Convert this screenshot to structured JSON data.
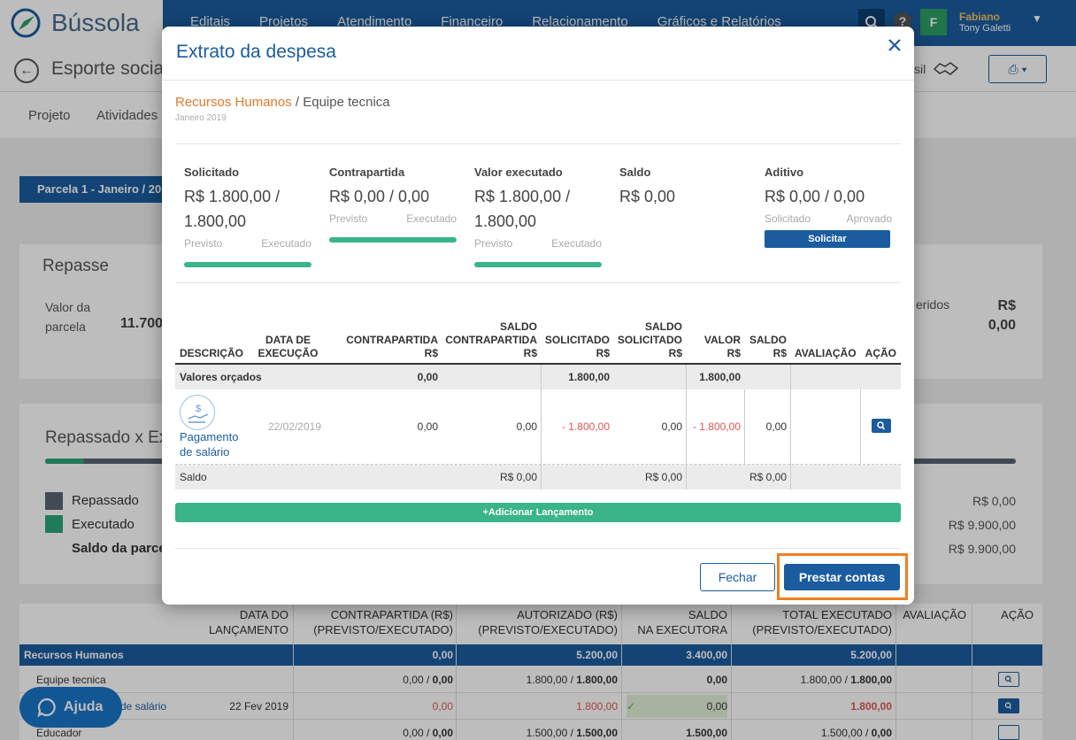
{
  "app": {
    "logo_text": "Bússola"
  },
  "nav": [
    "Editais",
    "Projetos",
    "Atendimento",
    "Financeiro",
    "Relacionamento",
    "Gráficos e Relatórios"
  ],
  "user": {
    "initial": "F",
    "name": "Fabiano",
    "subtitle": "Tony Galetti"
  },
  "subbar": {
    "title": "Esporte social",
    "right_text": "sil"
  },
  "tabs": [
    "Projeto",
    "Atividades"
  ],
  "parcela_label": "Parcela 1 - Janeiro / 20",
  "repasse": {
    "title": "Repasse",
    "valor_label_1": "Valor da",
    "valor_label_2": "parcela",
    "valor_value": "11.700",
    "right_label": "eridos",
    "right_value_1": "R$",
    "right_value_2": "0,00"
  },
  "rxe": {
    "title": "Repassado x Ex",
    "progress": 0.04,
    "legend": [
      {
        "label": "Repassado",
        "color": "#5a6475",
        "value": "R$ 0,00"
      },
      {
        "label": "Executado",
        "color": "#2aa679",
        "value": "R$ 9.900,00"
      }
    ],
    "saldo_label": "Saldo da parcel",
    "saldo_value": "R$ 9.900,00"
  },
  "bg_table": {
    "headers": [
      {
        "line1": "DATA DO",
        "line2": "LANÇAMENTO"
      },
      {
        "line1": "CONTRAPARTIDA (R$)",
        "line2": "(PREVISTO/EXECUTADO)"
      },
      {
        "line1": "AUTORIZADO (R$)",
        "line2": "(PREVISTO/EXECUTADO)"
      },
      {
        "line1": "SALDO",
        "line2": "NA EXECUTORA"
      },
      {
        "line1": "TOTAL EXECUTADO",
        "line2": "(PREVISTO/EXECUTADO)"
      },
      {
        "line1": "",
        "line2": "AVALIAÇÃO"
      },
      {
        "line1": "",
        "line2": "AÇÃO"
      }
    ],
    "group": {
      "name": "Recursos Humanos",
      "contrapartida": "0,00",
      "autorizado": "5.200,00",
      "saldo": "3.400,00",
      "total": "5.200,00"
    },
    "rows": [
      {
        "name": "Equipe tecnica",
        "date": "",
        "c1": "0,00 / ",
        "c2": "0,00",
        "a1": "1.800,00 / ",
        "a2": "1.800,00",
        "saldo": "0,00",
        "t1": "1.800,00 / ",
        "t2": "1.800,00"
      },
      {
        "name": "de salário",
        "date": "22 Fev 2019",
        "c": "0,00",
        "a": "1.800,00",
        "saldo": "0,00",
        "t": "1.800,00"
      },
      {
        "name": "Educador",
        "date": "",
        "c1": "0,00 / ",
        "c2": "0,00",
        "a1": "1.500,00 / ",
        "a2": "1.500,00",
        "saldo": "1.500,00",
        "t1": "1.500,00 / ",
        "t2": "0,00"
      }
    ]
  },
  "ajuda_label": "Ajuda",
  "modal": {
    "title": "Extrato da despesa",
    "breadcrumb_parent": "Recursos Humanos",
    "breadcrumb_sep": " / ",
    "breadcrumb_child": "Equipe tecnica",
    "period": "Janeiro 2019",
    "summary": [
      {
        "label": "Solicitado",
        "value_1": "R$ 1.800,00 /",
        "value_2": "1.800,00",
        "sub_left": "Previsto",
        "sub_right": "Executado"
      },
      {
        "label": "Contrapartida",
        "value_1": "R$ 0,00 / 0,00",
        "value_2": "",
        "sub_left": "Previsto",
        "sub_right": "Executado"
      },
      {
        "label": "Valor executado",
        "value_1": "R$ 1.800,00 /",
        "value_2": "1.800,00",
        "sub_left": "Previsto",
        "sub_right": "Executado"
      },
      {
        "label": "Saldo",
        "value_1": "R$ 0,00",
        "value_2": ""
      },
      {
        "label": "Aditivo",
        "value_1": "R$ 0,00 / 0,00",
        "value_2": "",
        "sub_left": "Solicitado",
        "sub_right": "Aprovado",
        "button": "Solicitar"
      }
    ],
    "table": {
      "headers": {
        "descricao": "DESCRIÇÃO",
        "data_1": "DATA DE",
        "data_2": "EXECUÇÃO",
        "contra_1": "CONTRAPARTIDA",
        "contra_2": "R$",
        "scontra_1": "SALDO",
        "scontra_2": "CONTRAPARTIDA",
        "scontra_3": "R$",
        "solic_1": "SOLICITADO",
        "solic_2": "R$",
        "ssolic_1": "SALDO",
        "ssolic_2": "SOLICITADO",
        "ssolic_3": "R$",
        "valor_1": "VALOR",
        "valor_2": "R$",
        "saldo_1": "SALDO",
        "saldo_2": "R$",
        "avaliacao": "AVALIAÇÃO",
        "acao": "AÇÃO"
      },
      "orcados": {
        "label": "Valores orçados",
        "contra": "0,00",
        "solic": "1.800,00",
        "valor": "1.800,00"
      },
      "lancamento": {
        "name_1": "Pagamento",
        "name_2": "de salário",
        "date": "22/02/2019",
        "contra": "0,00",
        "scontra": "0,00",
        "solic": "- 1.800,00",
        "ssolic": "0,00",
        "valor": "- 1.800,00",
        "saldo": "0,00"
      },
      "saldo_row": {
        "label": "Saldo",
        "scontra": "R$ 0,00",
        "ssolic": "R$ 0,00",
        "saldo": "R$ 0,00"
      }
    },
    "add_button": "Adicionar Lançamento",
    "fechar": "Fechar",
    "prestar": "Prestar contas"
  }
}
